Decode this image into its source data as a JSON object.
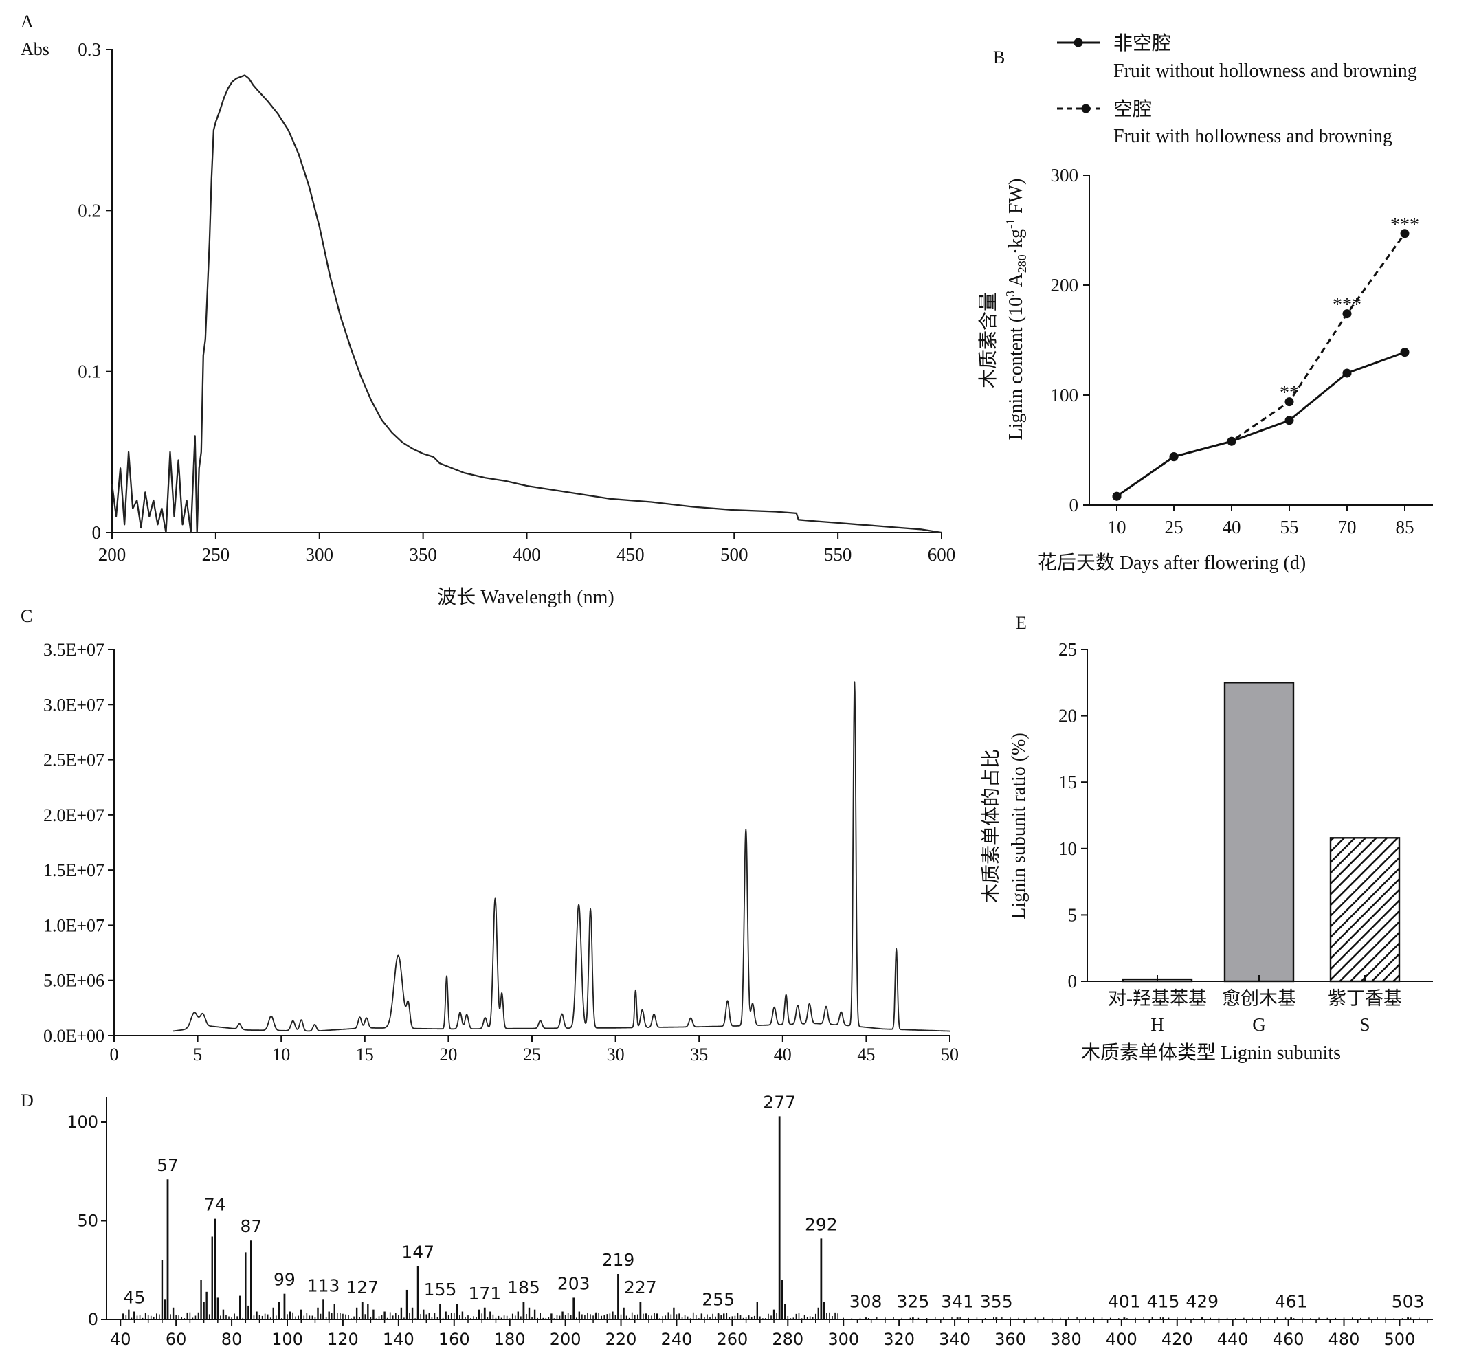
{
  "chart_data": [
    {
      "panel": "A",
      "type": "line",
      "ylabel": "Abs",
      "xlabel": "波长 Wavelength (nm)",
      "xlim": [
        200,
        600
      ],
      "ylim": [
        0,
        0.3
      ],
      "xticks": [
        200,
        250,
        300,
        350,
        400,
        450,
        500,
        550,
        600
      ],
      "yticks": [
        0,
        0.1,
        0.2,
        0.3
      ],
      "ytick_labels": [
        "0",
        "0.1",
        "0.2",
        "0.3"
      ],
      "series": [
        {
          "x": [
            200,
            202,
            204,
            206,
            208,
            210,
            212,
            214,
            216,
            218,
            220,
            222,
            224,
            226,
            228,
            230,
            232,
            234,
            236,
            238,
            240,
            241,
            242,
            243,
            244,
            245,
            246,
            247,
            248,
            249,
            250,
            252,
            254,
            256,
            258,
            260,
            262,
            264,
            266,
            268,
            270,
            275,
            280,
            285,
            290,
            295,
            300,
            305,
            310,
            315,
            320,
            325,
            330,
            335,
            340,
            345,
            350,
            355,
            358,
            360,
            370,
            380,
            390,
            400,
            420,
            440,
            460,
            480,
            500,
            520,
            530,
            531,
            540,
            550,
            560,
            570,
            580,
            590,
            600
          ],
          "y": [
            0.03,
            0.01,
            0.04,
            0.005,
            0.05,
            0.015,
            0.02,
            0.003,
            0.025,
            0.01,
            0.02,
            0.005,
            0.015,
            0.0,
            0.05,
            0.01,
            0.045,
            0.005,
            0.02,
            0.0,
            0.06,
            0.0,
            0.04,
            0.05,
            0.11,
            0.12,
            0.15,
            0.18,
            0.22,
            0.25,
            0.255,
            0.262,
            0.27,
            0.276,
            0.28,
            0.282,
            0.283,
            0.284,
            0.282,
            0.278,
            0.275,
            0.268,
            0.26,
            0.25,
            0.235,
            0.215,
            0.19,
            0.16,
            0.135,
            0.115,
            0.097,
            0.082,
            0.07,
            0.062,
            0.056,
            0.052,
            0.049,
            0.047,
            0.043,
            0.042,
            0.037,
            0.034,
            0.032,
            0.029,
            0.025,
            0.021,
            0.019,
            0.016,
            0.014,
            0.013,
            0.012,
            0.008,
            0.007,
            0.006,
            0.005,
            0.004,
            0.003,
            0.002,
            0.0
          ]
        }
      ]
    },
    {
      "panel": "B",
      "type": "line",
      "ylabel": "木质素含量",
      "ylabel2_prefix": "Lignin content (10",
      "ylabel2_sup1": "3",
      "ylabel2_mid": " A",
      "ylabel2_sub": "280",
      "ylabel2_mid2": "·kg",
      "ylabel2_sup2": "-1",
      "ylabel2_suffix": " FW)",
      "xlabel": "花后天数 Days after flowering (d)",
      "categories": [
        10,
        25,
        40,
        55,
        70,
        85
      ],
      "ylim": [
        0,
        300
      ],
      "yticks": [
        0,
        100,
        200,
        300
      ],
      "series": [
        {
          "name_cn": "非空腔",
          "name_en": "Fruit without hollowness and browning",
          "style": "solid",
          "values": [
            8,
            44,
            58,
            77,
            120,
            139
          ]
        },
        {
          "name_cn": "空腔",
          "name_en": "Fruit with hollowness and browning",
          "style": "dashed",
          "values": [
            8,
            44,
            58,
            94,
            174,
            247
          ]
        }
      ],
      "annotations": [
        {
          "x": 55,
          "y": 94,
          "text": "**"
        },
        {
          "x": 70,
          "y": 174,
          "text": "***"
        },
        {
          "x": 85,
          "y": 247,
          "text": "***"
        }
      ],
      "legend": "top-right"
    },
    {
      "panel": "C",
      "type": "line",
      "xlim": [
        0,
        50
      ],
      "ylim": [
        0,
        35000000
      ],
      "xticks": [
        0,
        5,
        10,
        15,
        20,
        25,
        30,
        35,
        40,
        45,
        50
      ],
      "yticks": [
        0,
        5000000,
        10000000,
        15000000,
        20000000,
        25000000,
        30000000,
        35000000
      ],
      "ytick_labels": [
        "0.0E+00",
        "5.0E+06",
        "1.0E+07",
        "1.5E+07",
        "2.0E+07",
        "2.5E+07",
        "3.0E+07",
        "3.5E+07"
      ],
      "baseline": [
        [
          3.5,
          400000
        ],
        [
          4.5,
          600000
        ],
        [
          5.5,
          900000
        ],
        [
          8,
          500000
        ],
        [
          12,
          400000
        ],
        [
          15,
          700000
        ],
        [
          20,
          600000
        ],
        [
          30,
          700000
        ],
        [
          35,
          800000
        ],
        [
          38,
          900000
        ],
        [
          40,
          1000000
        ],
        [
          42,
          1100000
        ],
        [
          44,
          900000
        ],
        [
          46,
          600000
        ],
        [
          50,
          400000
        ]
      ],
      "peaks": [
        [
          4.8,
          1400000,
          0.2
        ],
        [
          5.3,
          1100000,
          0.15
        ],
        [
          7.5,
          500000,
          0.1
        ],
        [
          9.4,
          1300000,
          0.15
        ],
        [
          10.7,
          900000,
          0.12
        ],
        [
          11.2,
          1000000,
          0.1
        ],
        [
          12,
          600000,
          0.1
        ],
        [
          14.7,
          1000000,
          0.1
        ],
        [
          15.1,
          900000,
          0.1
        ],
        [
          17.0,
          6600000,
          0.25
        ],
        [
          17.6,
          2100000,
          0.1
        ],
        [
          19.9,
          4800000,
          0.07
        ],
        [
          20.7,
          1500000,
          0.1
        ],
        [
          21.1,
          1300000,
          0.1
        ],
        [
          22.2,
          1000000,
          0.1
        ],
        [
          22.8,
          11800000,
          0.12
        ],
        [
          23.2,
          3200000,
          0.08
        ],
        [
          25.5,
          700000,
          0.1
        ],
        [
          26.8,
          1300000,
          0.1
        ],
        [
          27.8,
          11200000,
          0.15
        ],
        [
          28.5,
          10800000,
          0.1
        ],
        [
          31.2,
          3400000,
          0.06
        ],
        [
          31.6,
          1600000,
          0.1
        ],
        [
          32.3,
          1200000,
          0.1
        ],
        [
          34.5,
          800000,
          0.1
        ],
        [
          36.7,
          2300000,
          0.1
        ],
        [
          37.8,
          17800000,
          0.1
        ],
        [
          38.2,
          2000000,
          0.1
        ],
        [
          39.5,
          1600000,
          0.1
        ],
        [
          40.2,
          2700000,
          0.08
        ],
        [
          40.9,
          1700000,
          0.1
        ],
        [
          41.6,
          1800000,
          0.1
        ],
        [
          42.6,
          1600000,
          0.1
        ],
        [
          43.5,
          1200000,
          0.1
        ],
        [
          44.3,
          31200000,
          0.08
        ],
        [
          46.8,
          7300000,
          0.07
        ]
      ]
    },
    {
      "panel": "D",
      "type": "bar",
      "xlim": [
        35,
        512
      ],
      "ylim": [
        0,
        100
      ],
      "xticks": [
        40,
        60,
        80,
        100,
        120,
        140,
        160,
        180,
        200,
        220,
        240,
        260,
        280,
        300,
        320,
        340,
        360,
        380,
        400,
        420,
        440,
        460,
        480,
        500
      ],
      "yticks": [
        0,
        50,
        100
      ],
      "labeled_peaks": [
        {
          "mz": 45,
          "value": 4,
          "label": "45"
        },
        {
          "mz": 57,
          "value": 71,
          "label": "57"
        },
        {
          "mz": 74,
          "value": 51,
          "label": "74"
        },
        {
          "mz": 87,
          "value": 40,
          "label": "87"
        },
        {
          "mz": 99,
          "value": 13,
          "label": "99"
        },
        {
          "mz": 113,
          "value": 10,
          "label": "113"
        },
        {
          "mz": 127,
          "value": 9,
          "label": "127"
        },
        {
          "mz": 147,
          "value": 27,
          "label": "147"
        },
        {
          "mz": 155,
          "value": 8,
          "label": "155"
        },
        {
          "mz": 171,
          "value": 6,
          "label": "171"
        },
        {
          "mz": 185,
          "value": 9,
          "label": "185"
        },
        {
          "mz": 203,
          "value": 11,
          "label": "203"
        },
        {
          "mz": 219,
          "value": 23,
          "label": "219"
        },
        {
          "mz": 227,
          "value": 9,
          "label": "227"
        },
        {
          "mz": 255,
          "value": 3,
          "label": "255"
        },
        {
          "mz": 277,
          "value": 103,
          "label": "277"
        },
        {
          "mz": 292,
          "value": 41,
          "label": "292"
        },
        {
          "mz": 308,
          "value": 1,
          "label": "308"
        },
        {
          "mz": 325,
          "value": 1,
          "label": "325"
        },
        {
          "mz": 341,
          "value": 1,
          "label": "341"
        },
        {
          "mz": 355,
          "value": 1,
          "label": "355"
        },
        {
          "mz": 401,
          "value": 1,
          "label": "401"
        },
        {
          "mz": 415,
          "value": 1,
          "label": "415"
        },
        {
          "mz": 429,
          "value": 1,
          "label": "429"
        },
        {
          "mz": 461,
          "value": 1,
          "label": "461"
        },
        {
          "mz": 503,
          "value": 1,
          "label": "503"
        }
      ],
      "other_peaks": [
        [
          41,
          3
        ],
        [
          43,
          5
        ],
        [
          55,
          30
        ],
        [
          56,
          10
        ],
        [
          59,
          6
        ],
        [
          69,
          20
        ],
        [
          70,
          9
        ],
        [
          71,
          14
        ],
        [
          73,
          42
        ],
        [
          75,
          11
        ],
        [
          77,
          5
        ],
        [
          83,
          12
        ],
        [
          85,
          34
        ],
        [
          86,
          7
        ],
        [
          89,
          4
        ],
        [
          95,
          6
        ],
        [
          97,
          9
        ],
        [
          101,
          4
        ],
        [
          105,
          5
        ],
        [
          111,
          6
        ],
        [
          115,
          4
        ],
        [
          117,
          8
        ],
        [
          125,
          6
        ],
        [
          129,
          8
        ],
        [
          131,
          5
        ],
        [
          135,
          4
        ],
        [
          141,
          6
        ],
        [
          143,
          15
        ],
        [
          145,
          6
        ],
        [
          149,
          5
        ],
        [
          157,
          4
        ],
        [
          161,
          8
        ],
        [
          163,
          4
        ],
        [
          169,
          5
        ],
        [
          173,
          4
        ],
        [
          183,
          4
        ],
        [
          187,
          6
        ],
        [
          189,
          5
        ],
        [
          195,
          3
        ],
        [
          199,
          4
        ],
        [
          205,
          4
        ],
        [
          211,
          3
        ],
        [
          217,
          4
        ],
        [
          221,
          6
        ],
        [
          229,
          3
        ],
        [
          233,
          3
        ],
        [
          239,
          6
        ],
        [
          241,
          3
        ],
        [
          249,
          3
        ],
        [
          257,
          3
        ],
        [
          269,
          9
        ],
        [
          275,
          5
        ],
        [
          278,
          20
        ],
        [
          279,
          8
        ],
        [
          291,
          6
        ],
        [
          293,
          9
        ]
      ]
    },
    {
      "panel": "E",
      "type": "bar",
      "ylabel": "木质素单体的占比",
      "ylabel2": "Lignin subunit ratio (%)",
      "xlabel": "木质素单体类型 Lignin subunits",
      "categories": [
        {
          "cn": "对-羟基苯基",
          "en": "H",
          "value": 0.15,
          "fill": "#ffffff",
          "hatch": false
        },
        {
          "cn": "愈创木基",
          "en": "G",
          "value": 22.5,
          "fill": "#a3a3a7",
          "hatch": false
        },
        {
          "cn": "紫丁香基",
          "en": "S",
          "value": 10.8,
          "fill": "#ffffff",
          "hatch": true
        }
      ],
      "ylim": [
        0,
        25
      ],
      "yticks": [
        0,
        5,
        10,
        15,
        20,
        25
      ]
    }
  ],
  "panel_labels": {
    "a": "A",
    "b": "B",
    "c": "C",
    "d": "D",
    "e": "E"
  }
}
